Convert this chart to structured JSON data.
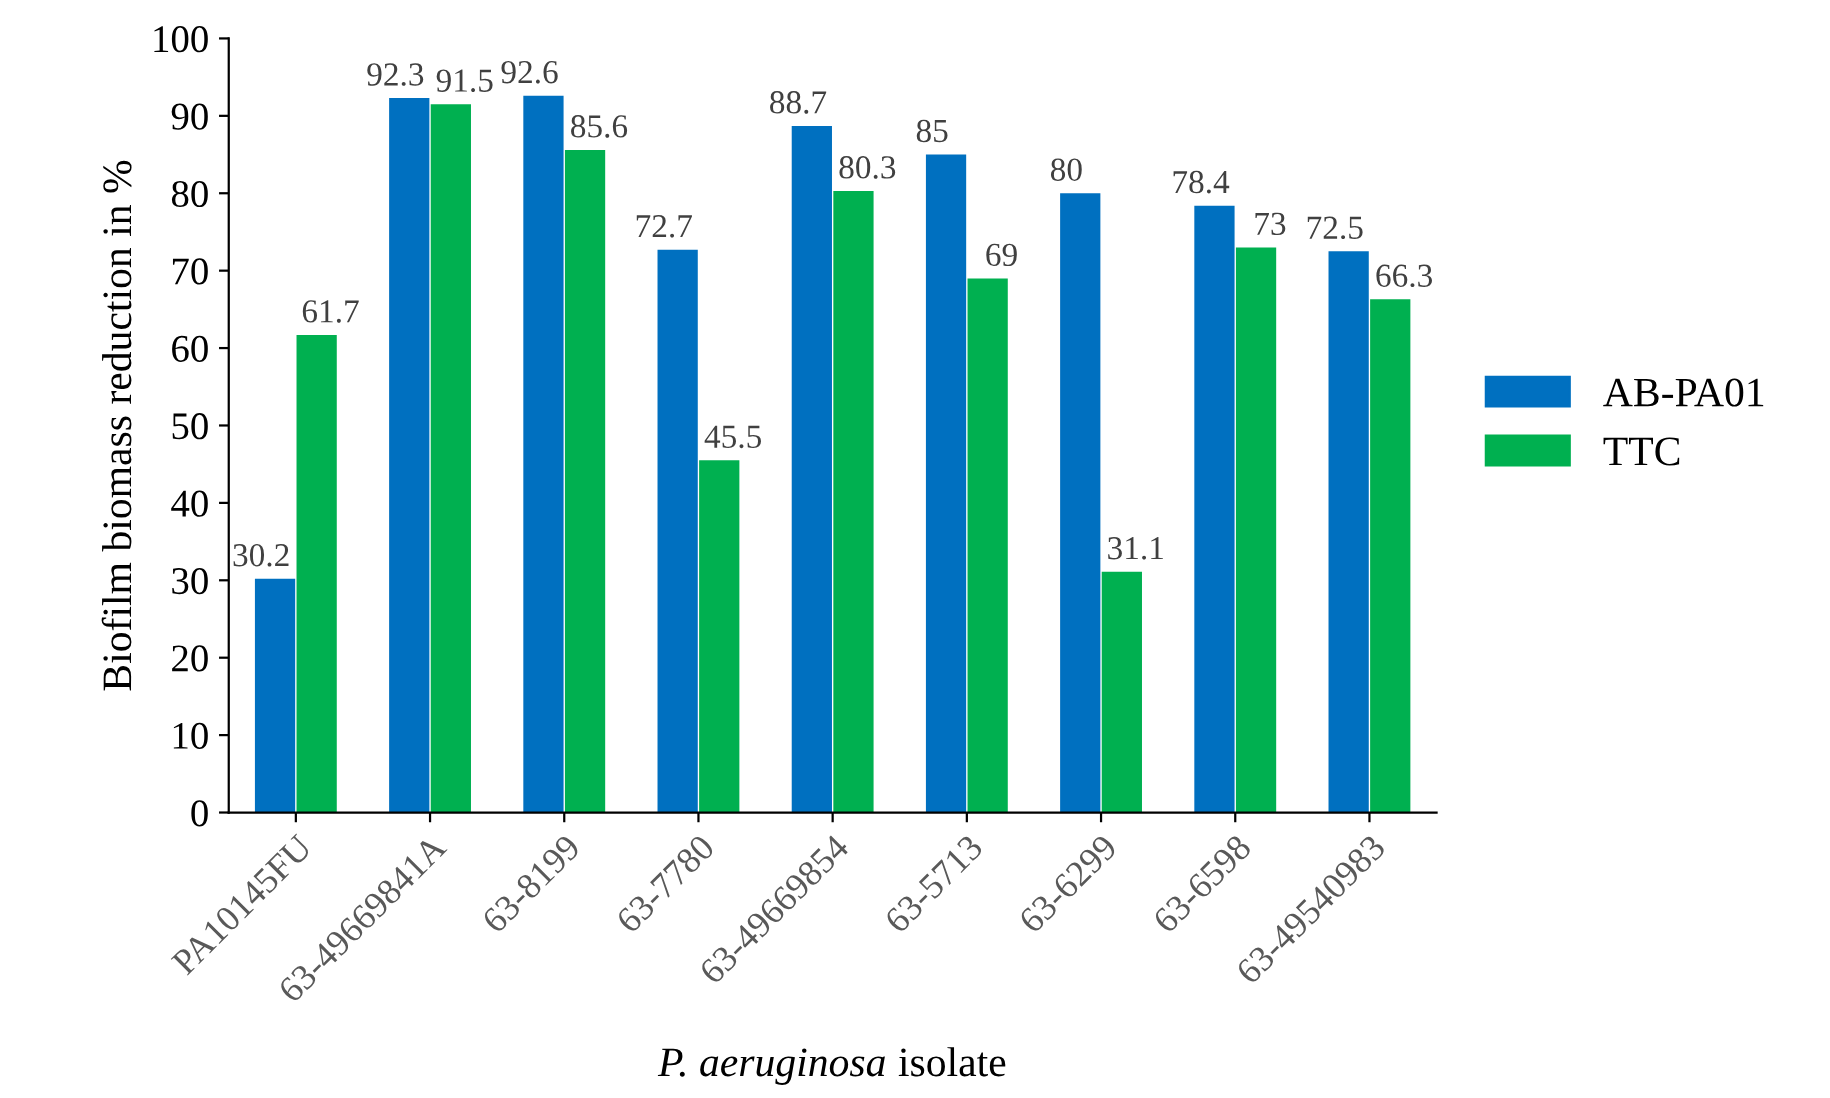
{
  "chart_data": {
    "type": "bar",
    "xlabel": "P. aeruginosa isolate",
    "ylabel": "Biofilm biomass reduction in %",
    "categories": [
      "PA10145FU",
      "63-49669841A",
      "63-8199",
      "63-7780",
      "63-49669854",
      "63-5713",
      "63-6299",
      "63-6598",
      "63-49540983"
    ],
    "series": [
      {
        "name": "AB-PA01",
        "color": "#0070c0",
        "values": [
          30.2,
          92.3,
          92.6,
          72.7,
          88.7,
          85,
          80,
          78.4,
          72.5
        ]
      },
      {
        "name": "TTC",
        "color": "#00b050",
        "values": [
          61.7,
          91.5,
          85.6,
          45.5,
          80.3,
          69,
          31.1,
          73,
          66.3
        ]
      }
    ],
    "ylim": [
      0,
      100
    ],
    "yticks": [
      0,
      10,
      20,
      30,
      40,
      50,
      60,
      70,
      80,
      90,
      100
    ],
    "data_labels": true,
    "legend": "right",
    "grid": false
  }
}
